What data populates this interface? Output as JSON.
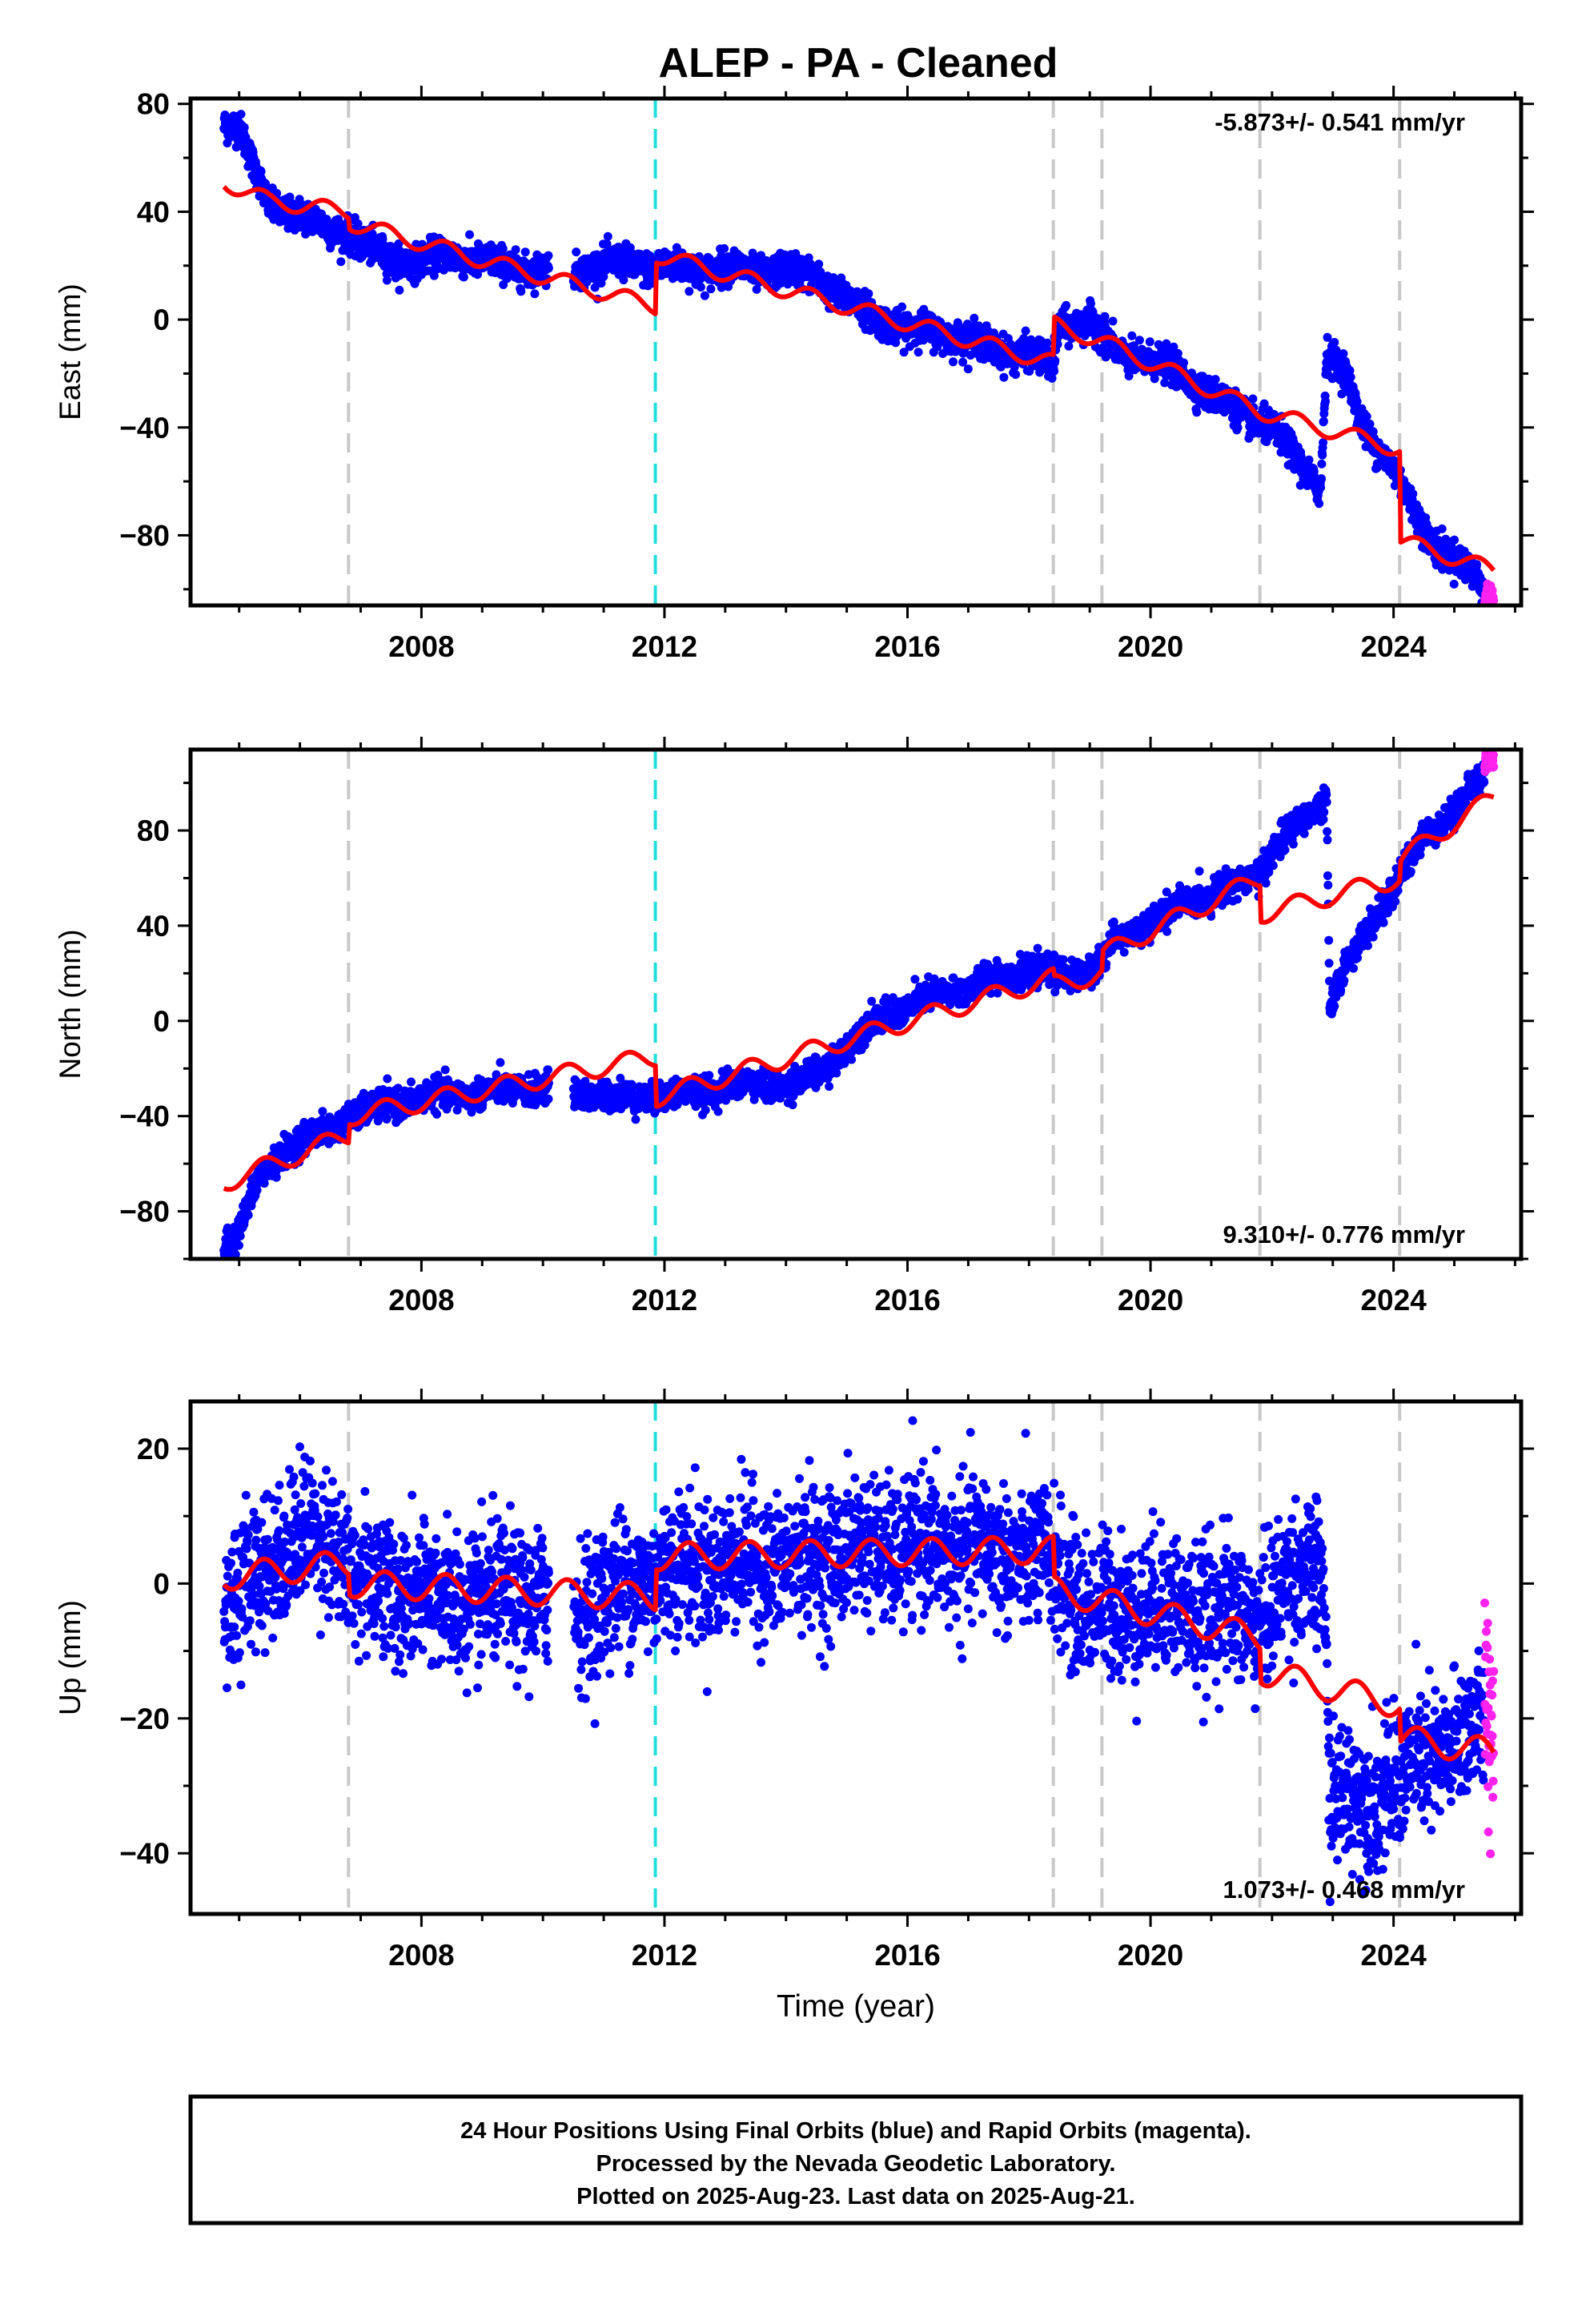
{
  "figure": {
    "title": "ALEP  - PA - Cleaned",
    "footer": [
      "24 Hour Positions Using Final Orbits (blue) and Rapid Orbits (magenta).",
      "Processed by the Nevada Geodetic Laboratory.",
      "Plotted on 2025-Aug-23. Last data on 2025-Aug-21."
    ],
    "colors": {
      "final_orbits": "#0000ff",
      "rapid_orbits": "#ff22ee",
      "model": "#ff0000",
      "equipment_change": "#c8c8c8",
      "earthquake": "#22dddd",
      "frame": "#000000"
    }
  },
  "chart_data": [
    {
      "type": "scatter",
      "panel": "east",
      "title": "",
      "xlabel": "",
      "ylabel": "East (mm)",
      "xlim": [
        2004.2,
        2026.1
      ],
      "ylim": [
        -106,
        82
      ],
      "xticks": [
        2008,
        2012,
        2016,
        2020,
        2024
      ],
      "yticks": [
        -80,
        -40,
        0,
        40,
        80
      ],
      "annotation": "-5.873+/- 0.541 mm/yr",
      "annotation_position": "top-right",
      "vlines_gray": [
        2006.8,
        2018.4,
        2019.2,
        2021.8,
        2024.1
      ],
      "vlines_cyan": [
        2011.85
      ],
      "final_orbits_trend": [
        [
          2004.75,
          73
        ],
        [
          2005.0,
          72
        ],
        [
          2005.2,
          58
        ],
        [
          2005.5,
          42
        ],
        [
          2006.0,
          39
        ],
        [
          2006.5,
          33
        ],
        [
          2006.8,
          33
        ],
        [
          2007.0,
          28
        ],
        [
          2007.5,
          22
        ],
        [
          2008.0,
          22
        ],
        [
          2008.5,
          24
        ],
        [
          2009.0,
          22
        ],
        [
          2009.5,
          19
        ],
        [
          2010.0,
          19
        ],
        [
          2010.5,
          18
        ],
        [
          2011.0,
          21
        ],
        [
          2011.5,
          20
        ],
        [
          2012.0,
          20
        ],
        [
          2012.5,
          18
        ],
        [
          2013.0,
          20
        ],
        [
          2013.5,
          17
        ],
        [
          2014.0,
          19
        ],
        [
          2014.5,
          15
        ],
        [
          2015.0,
          8
        ],
        [
          2015.5,
          0
        ],
        [
          2016.0,
          -3
        ],
        [
          2016.5,
          -5
        ],
        [
          2017.0,
          -7
        ],
        [
          2017.5,
          -12
        ],
        [
          2018.0,
          -12
        ],
        [
          2018.4,
          -18
        ],
        [
          2018.5,
          -2
        ],
        [
          2019.0,
          -1
        ],
        [
          2019.5,
          -13
        ],
        [
          2020.0,
          -15
        ],
        [
          2020.5,
          -20
        ],
        [
          2021.0,
          -28
        ],
        [
          2021.5,
          -35
        ],
        [
          2022.0,
          -40
        ],
        [
          2022.5,
          -55
        ],
        [
          2022.8,
          -62
        ],
        [
          2022.9,
          -12
        ],
        [
          2023.2,
          -20
        ],
        [
          2023.5,
          -40
        ],
        [
          2024.0,
          -55
        ],
        [
          2024.3,
          -70
        ],
        [
          2024.6,
          -82
        ],
        [
          2025.0,
          -88
        ],
        [
          2025.5,
          -100
        ]
      ],
      "gaps": [
        [
          2010.1,
          2010.5
        ]
      ],
      "scatter_sd": 3,
      "rapid_orbits_range": [
        2025.5,
        2025.65
      ],
      "model_trend": [
        [
          2004.75,
          51
        ],
        [
          2005.5,
          44
        ],
        [
          2006.8,
          40
        ],
        [
          2006.82,
          36
        ],
        [
          2009.5,
          19
        ],
        [
          2011.85,
          5
        ],
        [
          2011.87,
          24
        ],
        [
          2018.4,
          -16
        ],
        [
          2018.42,
          -2
        ],
        [
          2019.2,
          -8
        ],
        [
          2021.8,
          -34
        ],
        [
          2024.1,
          -48
        ],
        [
          2024.12,
          -82
        ],
        [
          2025.65,
          -93
        ]
      ],
      "model_seasonal_amplitude": 3
    },
    {
      "type": "scatter",
      "panel": "north",
      "title": "",
      "xlabel": "",
      "ylabel": "North (mm)",
      "xlim": [
        2004.2,
        2026.1
      ],
      "ylim": [
        -100,
        114
      ],
      "xticks": [
        2008,
        2012,
        2016,
        2020,
        2024
      ],
      "yticks": [
        -80,
        -40,
        0,
        40,
        80
      ],
      "annotation": "9.310+/- 0.776 mm/yr",
      "annotation_position": "bottom-right",
      "vlines_gray": [
        2006.8,
        2018.4,
        2019.2,
        2021.8,
        2024.1
      ],
      "vlines_cyan": [
        2011.85
      ],
      "final_orbits_trend": [
        [
          2004.75,
          -95
        ],
        [
          2005.0,
          -88
        ],
        [
          2005.3,
          -68
        ],
        [
          2005.7,
          -55
        ],
        [
          2006.0,
          -50
        ],
        [
          2006.5,
          -46
        ],
        [
          2006.8,
          -40
        ],
        [
          2007.5,
          -35
        ],
        [
          2008.0,
          -32
        ],
        [
          2009.0,
          -30
        ],
        [
          2010.0,
          -28
        ],
        [
          2010.5,
          -30
        ],
        [
          2011.0,
          -32
        ],
        [
          2011.9,
          -32
        ],
        [
          2012.5,
          -30
        ],
        [
          2013.0,
          -28
        ],
        [
          2013.5,
          -26
        ],
        [
          2014.0,
          -28
        ],
        [
          2014.5,
          -22
        ],
        [
          2015.0,
          -12
        ],
        [
          2015.5,
          2
        ],
        [
          2016.0,
          5
        ],
        [
          2016.5,
          12
        ],
        [
          2017.0,
          13
        ],
        [
          2017.5,
          20
        ],
        [
          2018.0,
          20
        ],
        [
          2018.5,
          20
        ],
        [
          2019.0,
          20
        ],
        [
          2019.5,
          36
        ],
        [
          2020.0,
          40
        ],
        [
          2020.5,
          50
        ],
        [
          2021.0,
          52
        ],
        [
          2021.5,
          60
        ],
        [
          2021.8,
          62
        ],
        [
          2022.0,
          70
        ],
        [
          2022.5,
          85
        ],
        [
          2022.9,
          93
        ],
        [
          2022.95,
          5
        ],
        [
          2023.2,
          22
        ],
        [
          2023.6,
          40
        ],
        [
          2024.0,
          55
        ],
        [
          2024.5,
          78
        ],
        [
          2025.0,
          88
        ],
        [
          2025.5,
          104
        ]
      ],
      "gaps": [
        [
          2010.1,
          2010.5
        ]
      ],
      "scatter_sd": 3,
      "rapid_orbits_range": [
        2025.5,
        2025.65
      ],
      "model_trend": [
        [
          2004.75,
          -68
        ],
        [
          2006.8,
          -48
        ],
        [
          2006.82,
          -40
        ],
        [
          2011.85,
          -15
        ],
        [
          2011.87,
          -32
        ],
        [
          2018.4,
          18
        ],
        [
          2018.42,
          15
        ],
        [
          2019.2,
          20
        ],
        [
          2019.22,
          28
        ],
        [
          2021.8,
          60
        ],
        [
          2021.82,
          45
        ],
        [
          2024.1,
          60
        ],
        [
          2024.12,
          68
        ],
        [
          2025.65,
          94
        ]
      ],
      "model_seasonal_amplitude": 4
    },
    {
      "type": "scatter",
      "panel": "up",
      "title": "",
      "xlabel": "Time (year)",
      "ylabel": "Up (mm)",
      "xlim": [
        2004.2,
        2026.1
      ],
      "ylim": [
        -49,
        27
      ],
      "xticks": [
        2008,
        2012,
        2016,
        2020,
        2024
      ],
      "yticks": [
        -40,
        -20,
        0,
        20
      ],
      "annotation": "1.073+/- 0.468 mm/yr",
      "annotation_position": "bottom-right",
      "vlines_gray": [
        2006.8,
        2018.4,
        2019.2,
        2021.8,
        2024.1
      ],
      "vlines_cyan": [
        2011.85
      ],
      "final_orbits_trend": [
        [
          2004.75,
          -3
        ],
        [
          2005.2,
          0
        ],
        [
          2006.0,
          8
        ],
        [
          2006.5,
          6
        ],
        [
          2006.8,
          2
        ],
        [
          2007.5,
          -1
        ],
        [
          2008.5,
          -3
        ],
        [
          2010.0,
          -2
        ],
        [
          2010.5,
          -4
        ],
        [
          2011.5,
          0
        ],
        [
          2012.0,
          2
        ],
        [
          2013.0,
          3
        ],
        [
          2014.0,
          3
        ],
        [
          2015.0,
          5
        ],
        [
          2016.0,
          5
        ],
        [
          2017.0,
          5
        ],
        [
          2018.0,
          4
        ],
        [
          2018.4,
          2
        ],
        [
          2019.0,
          -4
        ],
        [
          2020.0,
          -3
        ],
        [
          2021.0,
          -4
        ],
        [
          2021.8,
          -5
        ],
        [
          2022.5,
          2
        ],
        [
          2022.85,
          2
        ],
        [
          2022.95,
          -32
        ],
        [
          2023.5,
          -32
        ],
        [
          2024.0,
          -30
        ],
        [
          2024.5,
          -26
        ],
        [
          2025.0,
          -24
        ],
        [
          2025.5,
          -20
        ]
      ],
      "gaps": [
        [
          2010.1,
          2010.5
        ]
      ],
      "scatter_sd": 5.2,
      "rapid_orbits_range": [
        2025.5,
        2025.65
      ],
      "rapid_orbits_center": -20,
      "rapid_orbits_sd": 8,
      "model_trend": [
        [
          2004.75,
          1
        ],
        [
          2006.8,
          3
        ],
        [
          2006.82,
          0
        ],
        [
          2011.85,
          -2
        ],
        [
          2011.87,
          4
        ],
        [
          2018.4,
          5
        ],
        [
          2018.42,
          -1
        ],
        [
          2021.8,
          -8
        ],
        [
          2021.82,
          -13
        ],
        [
          2024.1,
          -18
        ],
        [
          2024.12,
          -23
        ],
        [
          2025.65,
          -25
        ]
      ],
      "model_seasonal_amplitude": 2
    }
  ]
}
